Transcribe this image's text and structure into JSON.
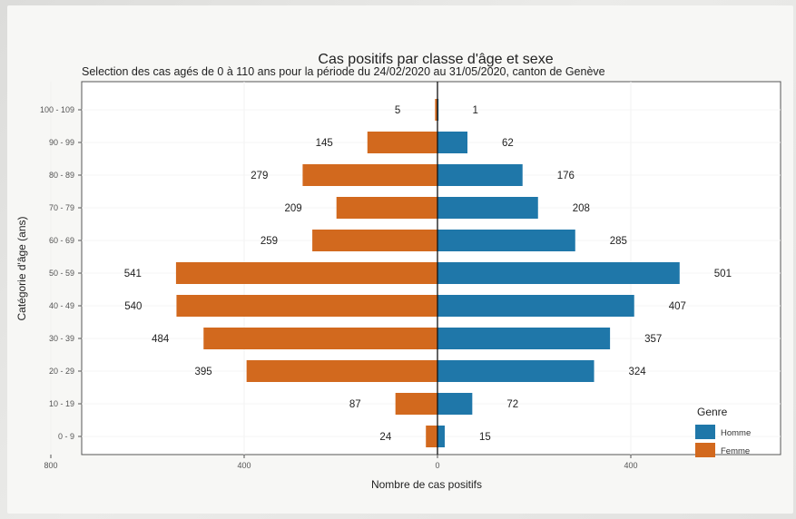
{
  "chart_data": {
    "type": "bar",
    "orientation": "horizontal",
    "title": "Cas positifs par classe d'âge et sexe",
    "subtitle": "Selection des cas agés de 0 à 110 ans pour la période du 24/02/2020 au 31/05/2020, canton de Genève",
    "xlabel": "Nombre de cas positifs",
    "ylabel": "Catégorie d'âge (ans)",
    "xlim": [
      -800,
      800
    ],
    "xticks": [
      -800,
      -400,
      0,
      400,
      800
    ],
    "xtick_labels": [
      "800",
      "400",
      "0",
      "400",
      "800"
    ],
    "categories": [
      "0 - 9",
      "10 - 19",
      "20 - 29",
      "30 - 39",
      "40 - 49",
      "50 - 59",
      "60 - 69",
      "70 - 79",
      "80 - 89",
      "90 - 99",
      "100 - 109"
    ],
    "series": [
      {
        "name": "Homme",
        "color": "#1f77a9",
        "side": "right",
        "values": [
          15,
          72,
          324,
          357,
          407,
          501,
          285,
          208,
          176,
          62,
          1
        ]
      },
      {
        "name": "Femme",
        "color": "#d2691e",
        "side": "left",
        "values": [
          24,
          87,
          395,
          484,
          540,
          541,
          259,
          209,
          279,
          145,
          5
        ]
      }
    ],
    "legend": {
      "title": "Genre",
      "position": "bottom-right"
    },
    "grid": true
  }
}
